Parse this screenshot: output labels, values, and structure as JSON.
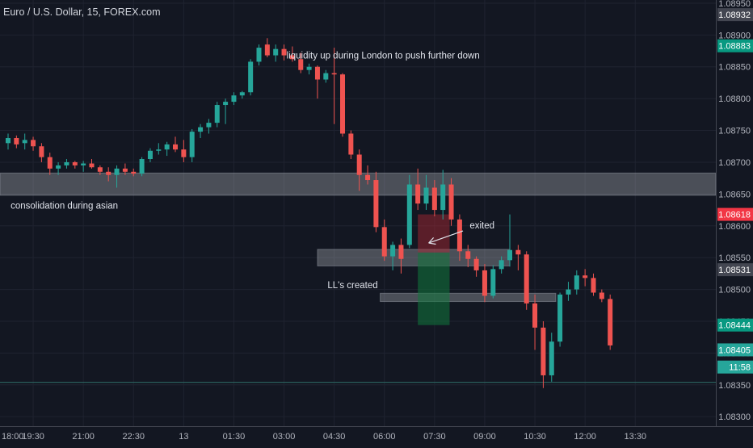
{
  "chart_data": {
    "type": "candlestick",
    "title": "Euro / U.S. Dollar, 15, FOREX.com",
    "ylim": [
      1.08285,
      1.08955
    ],
    "y_ticks": [
      "1.08950",
      "1.08900",
      "1.08850",
      "1.08800",
      "1.08750",
      "1.08700",
      "1.08650",
      "1.08600",
      "1.08550",
      "1.08500",
      "1.08450",
      "1.08400",
      "1.08350",
      "1.08300"
    ],
    "x_ticks": [
      {
        "label": "18:00",
        "i": -3
      },
      {
        "label": "19:30",
        "i": 3
      },
      {
        "label": "21:00",
        "i": 9
      },
      {
        "label": "22:30",
        "i": 15
      },
      {
        "label": "13",
        "i": 21
      },
      {
        "label": "01:30",
        "i": 27
      },
      {
        "label": "03:00",
        "i": 33
      },
      {
        "label": "04:30",
        "i": 39
      },
      {
        "label": "06:00",
        "i": 45
      },
      {
        "label": "07:30",
        "i": 51
      },
      {
        "label": "09:00",
        "i": 57
      },
      {
        "label": "10:30",
        "i": 63
      },
      {
        "label": "12:00",
        "i": 69
      },
      {
        "label": "13:30",
        "i": 75
      }
    ],
    "price_labels": [
      {
        "text": "1.08932",
        "y": 1.08932,
        "color": "#434651"
      },
      {
        "text": "1.08883",
        "y": 1.08883,
        "color": "#089981"
      },
      {
        "text": "1.08618",
        "y": 1.08618,
        "color": "#f23645"
      },
      {
        "text": "1.08531",
        "y": 1.08531,
        "color": "#434651"
      },
      {
        "text": "1.08444",
        "y": 1.08444,
        "color": "#089981"
      },
      {
        "text": "1.08405",
        "y": 1.08405,
        "color": "#26a69a"
      },
      {
        "text": "11:58",
        "y": 1.08378,
        "color": "#26a69a"
      }
    ],
    "zones": [
      {
        "i0": -5.5,
        "i1": 85,
        "y0": 1.08648,
        "y1": 1.08683
      },
      {
        "i0": 37,
        "i1": 60,
        "y0": 1.08537,
        "y1": 1.08563
      },
      {
        "i0": 44.5,
        "i1": 65.5,
        "y0": 1.08481,
        "y1": 1.08494
      }
    ],
    "position": {
      "i0": 49,
      "i1": 52.8,
      "entry": 1.08558,
      "stop": 1.08618,
      "target": 1.08444
    },
    "hline": 1.08354,
    "annotations": [
      {
        "text": "liquidity up during London to push further down",
        "i": 33.3,
        "y": 1.08863
      },
      {
        "text": "consolidation during asian",
        "i": 0.3,
        "y": 1.08627
      },
      {
        "text": "exited",
        "i": 55.2,
        "y": 1.08596
      },
      {
        "text": "LL's created",
        "i": 38.2,
        "y": 1.08502
      }
    ],
    "arrow": {
      "from_i": 54.4,
      "from_y": 1.08592,
      "to_i": 50.3,
      "to_y": 1.08573
    },
    "candles": [
      {
        "o": 1.0873,
        "h": 1.08745,
        "l": 1.0872,
        "c": 1.08738
      },
      {
        "o": 1.08738,
        "h": 1.08742,
        "l": 1.08722,
        "c": 1.08728
      },
      {
        "o": 1.0873,
        "h": 1.08745,
        "l": 1.0872,
        "c": 1.08735
      },
      {
        "o": 1.08735,
        "h": 1.0874,
        "l": 1.08718,
        "c": 1.08725
      },
      {
        "o": 1.08725,
        "h": 1.0873,
        "l": 1.087,
        "c": 1.08708
      },
      {
        "o": 1.08708,
        "h": 1.08715,
        "l": 1.0868,
        "c": 1.0869
      },
      {
        "o": 1.0869,
        "h": 1.087,
        "l": 1.0868,
        "c": 1.08695
      },
      {
        "o": 1.08695,
        "h": 1.08705,
        "l": 1.0869,
        "c": 1.087
      },
      {
        "o": 1.087,
        "h": 1.08702,
        "l": 1.0869,
        "c": 1.08695
      },
      {
        "o": 1.08695,
        "h": 1.08702,
        "l": 1.08685,
        "c": 1.08698
      },
      {
        "o": 1.08698,
        "h": 1.08705,
        "l": 1.0869,
        "c": 1.08692
      },
      {
        "o": 1.08692,
        "h": 1.08695,
        "l": 1.0868,
        "c": 1.08685
      },
      {
        "o": 1.08685,
        "h": 1.08692,
        "l": 1.0867,
        "c": 1.0868
      },
      {
        "o": 1.0868,
        "h": 1.08695,
        "l": 1.0866,
        "c": 1.0869
      },
      {
        "o": 1.0869,
        "h": 1.08698,
        "l": 1.0868,
        "c": 1.08685
      },
      {
        "o": 1.08685,
        "h": 1.0869,
        "l": 1.08678,
        "c": 1.08682
      },
      {
        "o": 1.08682,
        "h": 1.08708,
        "l": 1.08678,
        "c": 1.08705
      },
      {
        "o": 1.08705,
        "h": 1.08722,
        "l": 1.087,
        "c": 1.08718
      },
      {
        "o": 1.08718,
        "h": 1.0873,
        "l": 1.08712,
        "c": 1.0872
      },
      {
        "o": 1.0872,
        "h": 1.08732,
        "l": 1.0871,
        "c": 1.08728
      },
      {
        "o": 1.08728,
        "h": 1.0874,
        "l": 1.08716,
        "c": 1.0872
      },
      {
        "o": 1.0872,
        "h": 1.08735,
        "l": 1.087,
        "c": 1.08708
      },
      {
        "o": 1.08708,
        "h": 1.08752,
        "l": 1.087,
        "c": 1.08748
      },
      {
        "o": 1.08748,
        "h": 1.0876,
        "l": 1.08738,
        "c": 1.08755
      },
      {
        "o": 1.08755,
        "h": 1.08768,
        "l": 1.08745,
        "c": 1.08762
      },
      {
        "o": 1.08762,
        "h": 1.08795,
        "l": 1.08755,
        "c": 1.0879
      },
      {
        "o": 1.0879,
        "h": 1.088,
        "l": 1.0876,
        "c": 1.08795
      },
      {
        "o": 1.08795,
        "h": 1.0881,
        "l": 1.0879,
        "c": 1.08805
      },
      {
        "o": 1.08805,
        "h": 1.08812,
        "l": 1.088,
        "c": 1.0881
      },
      {
        "o": 1.0881,
        "h": 1.08862,
        "l": 1.08805,
        "c": 1.08858
      },
      {
        "o": 1.08858,
        "h": 1.08885,
        "l": 1.08852,
        "c": 1.0888
      },
      {
        "o": 1.08885,
        "h": 1.08895,
        "l": 1.08865,
        "c": 1.08868
      },
      {
        "o": 1.08868,
        "h": 1.08885,
        "l": 1.08858,
        "c": 1.08878
      },
      {
        "o": 1.08878,
        "h": 1.08885,
        "l": 1.0886,
        "c": 1.08868
      },
      {
        "o": 1.08868,
        "h": 1.08882,
        "l": 1.08858,
        "c": 1.08862
      },
      {
        "o": 1.08862,
        "h": 1.08872,
        "l": 1.0884,
        "c": 1.08845
      },
      {
        "o": 1.08845,
        "h": 1.08855,
        "l": 1.08838,
        "c": 1.0885
      },
      {
        "o": 1.0885,
        "h": 1.08852,
        "l": 1.088,
        "c": 1.0883
      },
      {
        "o": 1.0883,
        "h": 1.08845,
        "l": 1.08825,
        "c": 1.0884
      },
      {
        "o": 1.0884,
        "h": 1.0888,
        "l": 1.0876,
        "c": 1.08838
      },
      {
        "o": 1.08838,
        "h": 1.0884,
        "l": 1.0874,
        "c": 1.08745
      },
      {
        "o": 1.08745,
        "h": 1.0875,
        "l": 1.08705,
        "c": 1.08712
      },
      {
        "o": 1.08712,
        "h": 1.0872,
        "l": 1.08655,
        "c": 1.0868
      },
      {
        "o": 1.0868,
        "h": 1.08695,
        "l": 1.08665,
        "c": 1.08672
      },
      {
        "o": 1.08672,
        "h": 1.08685,
        "l": 1.0859,
        "c": 1.08598
      },
      {
        "o": 1.08598,
        "h": 1.0861,
        "l": 1.08545,
        "c": 1.08552
      },
      {
        "o": 1.08552,
        "h": 1.08575,
        "l": 1.0853,
        "c": 1.0857
      },
      {
        "o": 1.0857,
        "h": 1.0858,
        "l": 1.08525,
        "c": 1.08548
      },
      {
        "o": 1.0857,
        "h": 1.0868,
        "l": 1.08565,
        "c": 1.08665
      },
      {
        "o": 1.08665,
        "h": 1.0869,
        "l": 1.08625,
        "c": 1.08635
      },
      {
        "o": 1.08635,
        "h": 1.0868,
        "l": 1.08625,
        "c": 1.0866
      },
      {
        "o": 1.0866,
        "h": 1.08672,
        "l": 1.08615,
        "c": 1.08625
      },
      {
        "o": 1.08625,
        "h": 1.08688,
        "l": 1.0861,
        "c": 1.08665
      },
      {
        "o": 1.08665,
        "h": 1.08675,
        "l": 1.086,
        "c": 1.0861
      },
      {
        "o": 1.0861,
        "h": 1.08618,
        "l": 1.08545,
        "c": 1.0856
      },
      {
        "o": 1.0856,
        "h": 1.0857,
        "l": 1.08535,
        "c": 1.08548
      },
      {
        "o": 1.08548,
        "h": 1.08552,
        "l": 1.0852,
        "c": 1.0853
      },
      {
        "o": 1.0853,
        "h": 1.0854,
        "l": 1.0848,
        "c": 1.0849
      },
      {
        "o": 1.0849,
        "h": 1.08538,
        "l": 1.08486,
        "c": 1.08532
      },
      {
        "o": 1.08532,
        "h": 1.08552,
        "l": 1.08525,
        "c": 1.08546
      },
      {
        "o": 1.08546,
        "h": 1.08618,
        "l": 1.08536,
        "c": 1.08562
      },
      {
        "o": 1.08562,
        "h": 1.0857,
        "l": 1.0853,
        "c": 1.08555
      },
      {
        "o": 1.08555,
        "h": 1.0856,
        "l": 1.08468,
        "c": 1.08478
      },
      {
        "o": 1.08478,
        "h": 1.08492,
        "l": 1.08405,
        "c": 1.0844
      },
      {
        "o": 1.0844,
        "h": 1.0845,
        "l": 1.08345,
        "c": 1.08365
      },
      {
        "o": 1.08365,
        "h": 1.08432,
        "l": 1.08355,
        "c": 1.08418
      },
      {
        "o": 1.08418,
        "h": 1.08495,
        "l": 1.0841,
        "c": 1.08492
      },
      {
        "o": 1.08492,
        "h": 1.08512,
        "l": 1.08482,
        "c": 1.085
      },
      {
        "o": 1.085,
        "h": 1.0853,
        "l": 1.08492,
        "c": 1.08522
      },
      {
        "o": 1.08522,
        "h": 1.08532,
        "l": 1.08505,
        "c": 1.08518
      },
      {
        "o": 1.08518,
        "h": 1.08525,
        "l": 1.0849,
        "c": 1.08495
      },
      {
        "o": 1.08495,
        "h": 1.085,
        "l": 1.0848,
        "c": 1.08485
      },
      {
        "o": 1.08485,
        "h": 1.08492,
        "l": 1.08405,
        "c": 1.08412
      }
    ]
  }
}
